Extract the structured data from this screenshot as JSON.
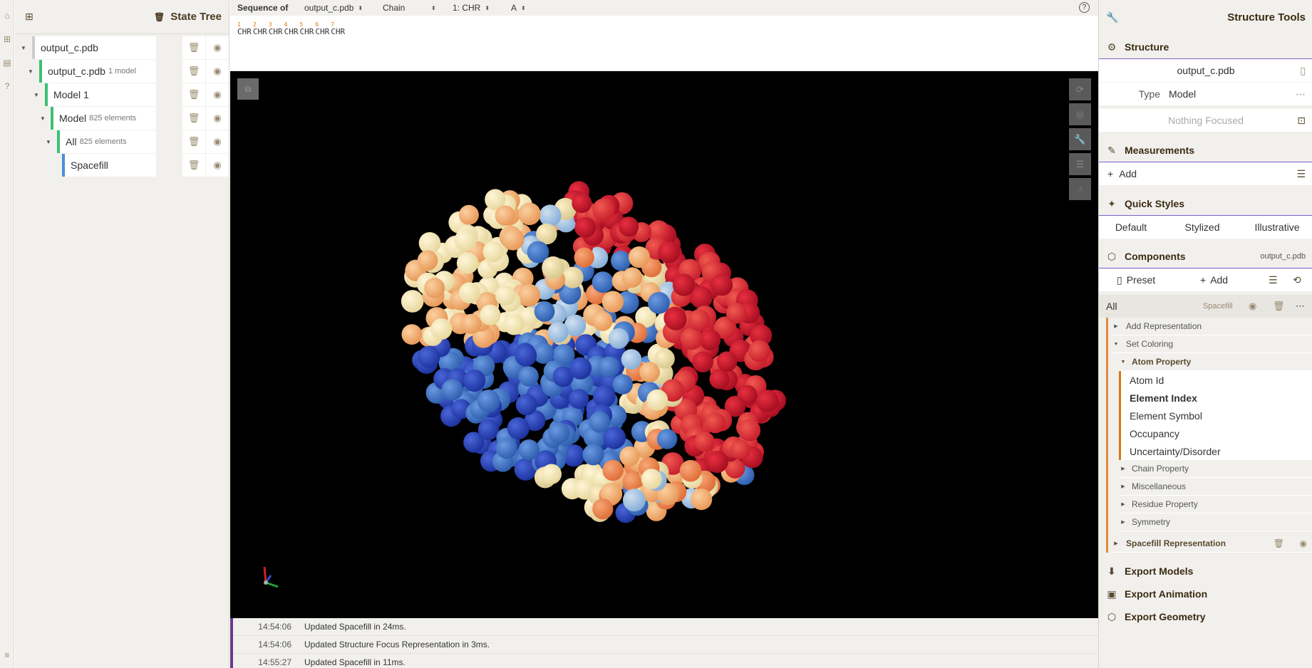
{
  "state_tree": {
    "title": "State Tree",
    "nodes": [
      {
        "label": "output_c.pdb",
        "sub": ""
      },
      {
        "label": "output_c.pdb",
        "sub": "1 model"
      },
      {
        "label": "Model 1",
        "sub": ""
      },
      {
        "label": "Model",
        "sub": "825 elements"
      },
      {
        "label": "All",
        "sub": "825 elements"
      },
      {
        "label": "Spacefill",
        "sub": ""
      }
    ]
  },
  "sequence": {
    "label": "Sequence of",
    "structure_select": "output_c.pdb",
    "mode_select": "Chain",
    "entity_select": "1: CHR",
    "chain_select": "A",
    "residues": [
      {
        "num": "1",
        "name": "CHR"
      },
      {
        "num": "2",
        "name": "CHR"
      },
      {
        "num": "3",
        "name": "CHR"
      },
      {
        "num": "4",
        "name": "CHR"
      },
      {
        "num": "5",
        "name": "CHR"
      },
      {
        "num": "6",
        "name": "CHR"
      },
      {
        "num": "7",
        "name": "CHR"
      }
    ],
    "help_icon": "help-icon"
  },
  "log": [
    {
      "time": "14:54:06",
      "message": "Updated Spacefill in 24ms."
    },
    {
      "time": "14:54:06",
      "message": "Updated Structure Focus Representation in 3ms."
    },
    {
      "time": "14:55:27",
      "message": "Updated Spacefill in 11ms."
    }
  ],
  "structure_tools": {
    "title": "Structure Tools",
    "structure": {
      "heading": "Structure",
      "name": "output_c.pdb",
      "type_label": "Type",
      "type_value": "Model",
      "focus_text": "Nothing Focused"
    },
    "measurements": {
      "heading": "Measurements",
      "add_label": "Add"
    },
    "quick_styles": {
      "heading": "Quick Styles",
      "default": "Default",
      "stylized": "Stylized",
      "illustrative": "Illustrative"
    },
    "components": {
      "heading": "Components",
      "structure_ref": "output_c.pdb",
      "preset_label": "Preset",
      "add_label": "Add",
      "group_name": "All",
      "group_repr": "Spacefill",
      "add_representation": "Add Representation",
      "set_coloring": "Set Coloring",
      "atom_property": "Atom Property",
      "atom_property_options": [
        "Atom Id",
        "Element Index",
        "Element Symbol",
        "Occupancy",
        "Uncertainty/Disorder"
      ],
      "selected_option": "Element Index",
      "other_groups": [
        "Chain Property",
        "Miscellaneous",
        "Residue Property",
        "Symmetry"
      ],
      "representation": "Spacefill Representation"
    },
    "export_models": "Export Models",
    "export_animation": "Export Animation",
    "export_geometry": "Export Geometry"
  },
  "colors": {
    "accent_green": "#3cc073",
    "accent_blue": "#4a90d9",
    "accent_orange": "#d47a10",
    "accent_purple": "#7b5ec7",
    "panel_bg": "#f1f0ed"
  }
}
